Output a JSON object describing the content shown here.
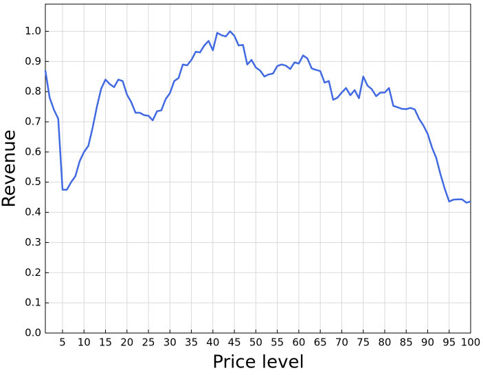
{
  "chart_data": {
    "type": "line",
    "xlabel": "Price level",
    "ylabel": "Revenue",
    "x": [
      1,
      2,
      3,
      4,
      5,
      6,
      7,
      8,
      9,
      10,
      11,
      12,
      13,
      14,
      15,
      16,
      17,
      18,
      19,
      20,
      21,
      22,
      23,
      24,
      25,
      26,
      27,
      28,
      29,
      30,
      31,
      32,
      33,
      34,
      35,
      36,
      37,
      38,
      39,
      40,
      41,
      42,
      43,
      44,
      45,
      46,
      47,
      48,
      49,
      50,
      51,
      52,
      53,
      54,
      55,
      56,
      57,
      58,
      59,
      60,
      61,
      62,
      63,
      64,
      65,
      66,
      67,
      68,
      69,
      70,
      71,
      72,
      73,
      74,
      75,
      76,
      77,
      78,
      79,
      80,
      81,
      82,
      83,
      84,
      85,
      86,
      87,
      88,
      89,
      90,
      91,
      92,
      93,
      94,
      95,
      96,
      97,
      98,
      99,
      100
    ],
    "series": [
      {
        "name": "Revenue",
        "color": "#4169e1",
        "values": [
          0.87,
          0.78,
          0.74,
          0.71,
          0.475,
          0.475,
          0.5,
          0.52,
          0.57,
          0.6,
          0.62,
          0.68,
          0.75,
          0.81,
          0.84,
          0.825,
          0.815,
          0.84,
          0.835,
          0.79,
          0.765,
          0.73,
          0.73,
          0.722,
          0.72,
          0.705,
          0.735,
          0.738,
          0.775,
          0.795,
          0.835,
          0.845,
          0.89,
          0.887,
          0.905,
          0.932,
          0.93,
          0.953,
          0.968,
          0.937,
          0.995,
          0.987,
          0.983,
          1.0,
          0.985,
          0.953,
          0.955,
          0.89,
          0.905,
          0.88,
          0.87,
          0.85,
          0.857,
          0.86,
          0.885,
          0.89,
          0.886,
          0.875,
          0.897,
          0.893,
          0.92,
          0.91,
          0.877,
          0.872,
          0.868,
          0.83,
          0.835,
          0.773,
          0.78,
          0.797,
          0.812,
          0.788,
          0.805,
          0.778,
          0.85,
          0.82,
          0.808,
          0.785,
          0.797,
          0.797,
          0.812,
          0.753,
          0.748,
          0.743,
          0.742,
          0.746,
          0.741,
          0.71,
          0.688,
          0.66,
          0.615,
          0.58,
          0.525,
          0.477,
          0.436,
          0.442,
          0.443,
          0.443,
          0.432,
          0.436
        ]
      }
    ],
    "xlim": [
      1,
      100
    ],
    "xticks": [
      5,
      10,
      15,
      20,
      25,
      30,
      35,
      40,
      45,
      50,
      55,
      60,
      65,
      70,
      75,
      80,
      85,
      90,
      95,
      100
    ],
    "ylim": [
      0,
      1.09
    ],
    "yticks": [
      {
        "value": 0,
        "label": "0.0"
      },
      0.1,
      0.2,
      0.3,
      0.4,
      0.5,
      0.6,
      0.7,
      0.8,
      0.9,
      {
        "value": 1,
        "label": "1.0"
      }
    ],
    "grid": true
  }
}
